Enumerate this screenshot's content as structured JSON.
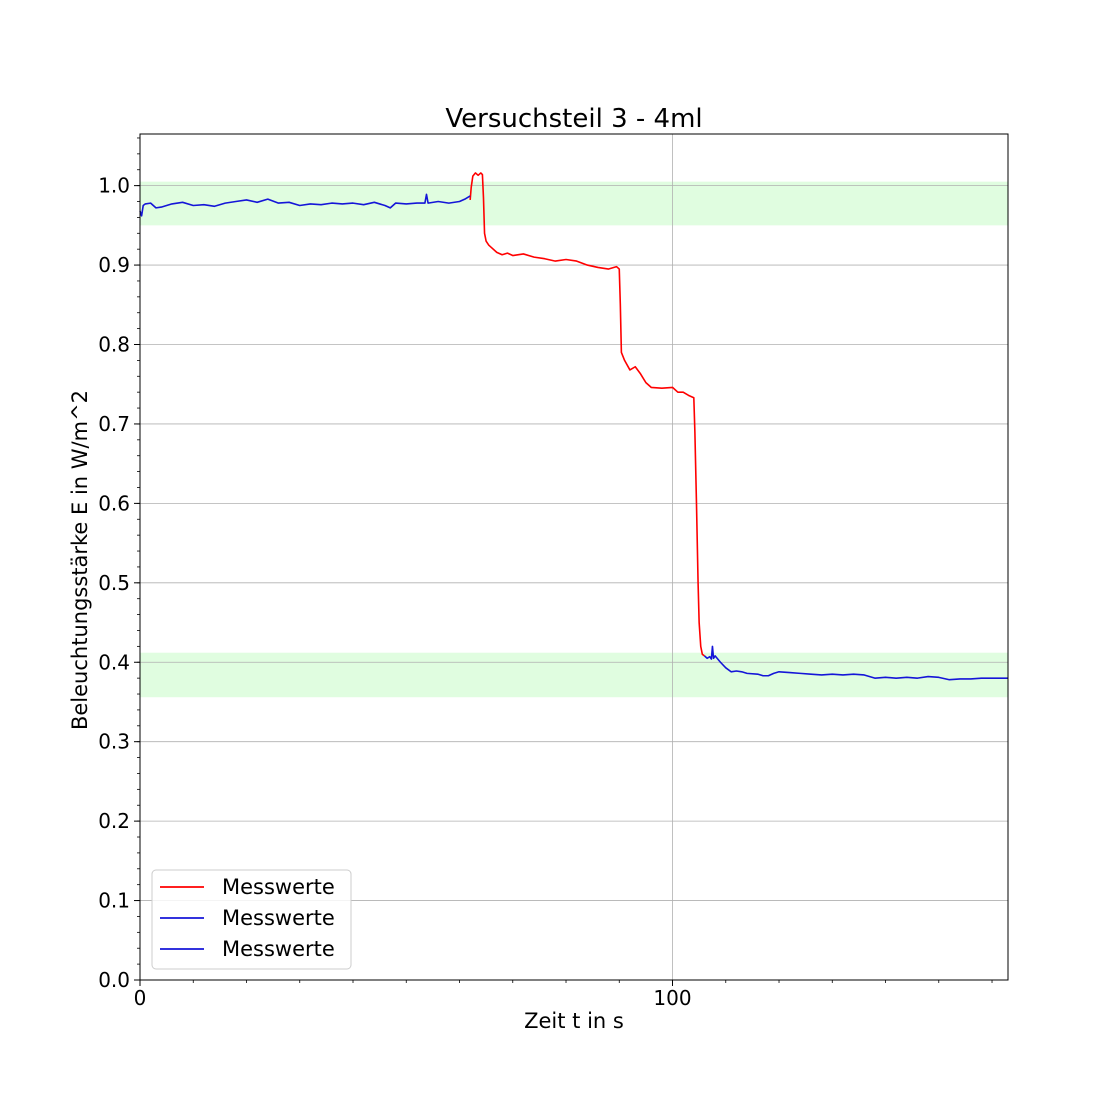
{
  "chart_data": {
    "type": "line",
    "title": "Versuchsteil 3 - 4ml",
    "xlabel": "Zeit t in s",
    "ylabel": "Beleuchtungsstärke E in W/m^2",
    "xlim": [
      0,
      163
    ],
    "ylim": [
      0,
      1.065
    ],
    "xticks": [
      0,
      100
    ],
    "x_minor_step": 10,
    "yticks": [
      0.0,
      0.1,
      0.2,
      0.3,
      0.4,
      0.5,
      0.6,
      0.7,
      0.8,
      0.9,
      1.0
    ],
    "ytick_labels": [
      "0.0",
      "0.1",
      "0.2",
      "0.3",
      "0.4",
      "0.5",
      "0.6",
      "0.7",
      "0.8",
      "0.9",
      "1.0"
    ],
    "y_minor_step": 0.02,
    "grid": true,
    "legend_position": "bottom-left",
    "bands": [
      {
        "y0": 0.95,
        "y1": 1.005,
        "color": "#e0fde0"
      },
      {
        "y0": 0.356,
        "y1": 0.412,
        "color": "#e0fde0"
      }
    ],
    "series": [
      {
        "name": "Messwerte",
        "color": "#ff0000",
        "points": [
          [
            62.0,
            0.982
          ],
          [
            62.2,
            0.998
          ],
          [
            62.5,
            1.012
          ],
          [
            63.0,
            1.016
          ],
          [
            63.5,
            1.013
          ],
          [
            64.0,
            1.016
          ],
          [
            64.3,
            1.014
          ],
          [
            64.5,
            0.985
          ],
          [
            64.7,
            0.94
          ],
          [
            65.0,
            0.93
          ],
          [
            65.5,
            0.925
          ],
          [
            66,
            0.922
          ],
          [
            67,
            0.916
          ],
          [
            68,
            0.913
          ],
          [
            69,
            0.915
          ],
          [
            70,
            0.912
          ],
          [
            72,
            0.914
          ],
          [
            74,
            0.91
          ],
          [
            76,
            0.908
          ],
          [
            78,
            0.905
          ],
          [
            80,
            0.907
          ],
          [
            82,
            0.905
          ],
          [
            84,
            0.9
          ],
          [
            86,
            0.897
          ],
          [
            88,
            0.895
          ],
          [
            89.5,
            0.898
          ],
          [
            90.0,
            0.895
          ],
          [
            90.2,
            0.85
          ],
          [
            90.4,
            0.79
          ],
          [
            91,
            0.78
          ],
          [
            92,
            0.768
          ],
          [
            93,
            0.772
          ],
          [
            94,
            0.763
          ],
          [
            95,
            0.752
          ],
          [
            96,
            0.746
          ],
          [
            98,
            0.745
          ],
          [
            100,
            0.746
          ],
          [
            101,
            0.74
          ],
          [
            102,
            0.74
          ],
          [
            103,
            0.736
          ],
          [
            104.0,
            0.733
          ],
          [
            104.2,
            0.69
          ],
          [
            104.5,
            0.6
          ],
          [
            104.8,
            0.5
          ],
          [
            105.0,
            0.45
          ],
          [
            105.3,
            0.42
          ],
          [
            105.6,
            0.41
          ],
          [
            106,
            0.408
          ]
        ]
      },
      {
        "name": "Messwerte",
        "color": "#1515d8",
        "points": [
          [
            0,
            0.968
          ],
          [
            0.3,
            0.962
          ],
          [
            0.6,
            0.975
          ],
          [
            1,
            0.977
          ],
          [
            2,
            0.978
          ],
          [
            3,
            0.972
          ],
          [
            4,
            0.973
          ],
          [
            6,
            0.977
          ],
          [
            8,
            0.979
          ],
          [
            10,
            0.975
          ],
          [
            12,
            0.976
          ],
          [
            14,
            0.974
          ],
          [
            16,
            0.978
          ],
          [
            18,
            0.98
          ],
          [
            20,
            0.982
          ],
          [
            22,
            0.979
          ],
          [
            24,
            0.983
          ],
          [
            26,
            0.978
          ],
          [
            28,
            0.979
          ],
          [
            30,
            0.975
          ],
          [
            32,
            0.977
          ],
          [
            34,
            0.976
          ],
          [
            36,
            0.978
          ],
          [
            38,
            0.977
          ],
          [
            40,
            0.978
          ],
          [
            42,
            0.976
          ],
          [
            44,
            0.979
          ],
          [
            46,
            0.975
          ],
          [
            47,
            0.972
          ],
          [
            48,
            0.978
          ],
          [
            50,
            0.977
          ],
          [
            52,
            0.978
          ],
          [
            53.5,
            0.978
          ],
          [
            53.8,
            0.989
          ],
          [
            54.1,
            0.978
          ],
          [
            56,
            0.98
          ],
          [
            58,
            0.978
          ],
          [
            60,
            0.98
          ],
          [
            61,
            0.983
          ],
          [
            62,
            0.987
          ]
        ]
      },
      {
        "name": "Messwerte",
        "color": "#1515d8",
        "points": [
          [
            106,
            0.408
          ],
          [
            106.5,
            0.405
          ],
          [
            107,
            0.407
          ],
          [
            107.3,
            0.404
          ],
          [
            107.5,
            0.42
          ],
          [
            107.7,
            0.405
          ],
          [
            108,
            0.408
          ],
          [
            109,
            0.4
          ],
          [
            110,
            0.393
          ],
          [
            111,
            0.388
          ],
          [
            112,
            0.389
          ],
          [
            113,
            0.388
          ],
          [
            114,
            0.386
          ],
          [
            116,
            0.385
          ],
          [
            117,
            0.383
          ],
          [
            118,
            0.383
          ],
          [
            119,
            0.386
          ],
          [
            120,
            0.388
          ],
          [
            122,
            0.387
          ],
          [
            124,
            0.386
          ],
          [
            126,
            0.385
          ],
          [
            128,
            0.384
          ],
          [
            130,
            0.385
          ],
          [
            132,
            0.384
          ],
          [
            134,
            0.385
          ],
          [
            136,
            0.384
          ],
          [
            138,
            0.38
          ],
          [
            140,
            0.381
          ],
          [
            142,
            0.38
          ],
          [
            144,
            0.381
          ],
          [
            146,
            0.38
          ],
          [
            148,
            0.382
          ],
          [
            150,
            0.381
          ],
          [
            152,
            0.378
          ],
          [
            154,
            0.379
          ],
          [
            156,
            0.379
          ],
          [
            158,
            0.38
          ],
          [
            160,
            0.38
          ],
          [
            163,
            0.38
          ]
        ]
      }
    ]
  }
}
